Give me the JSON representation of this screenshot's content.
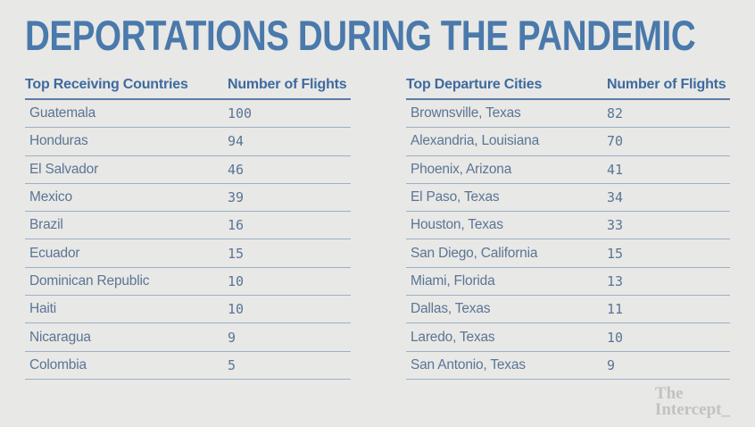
{
  "title": "DEPORTATIONS DURING THE PANDEMIC",
  "colors": {
    "background": "#e8e8e6",
    "title": "#4a79ab",
    "header_text": "#3e6a9e",
    "row_text": "#5a7595",
    "header_rule": "#5c7ea4",
    "row_rule": "#9db0c6",
    "logo": "#c2c2c2"
  },
  "tables": [
    {
      "name_header": "Top Receiving Countries",
      "value_header": "Number of Flights",
      "rows": [
        {
          "label": "Guatemala",
          "value": "100"
        },
        {
          "label": "Honduras",
          "value": "94"
        },
        {
          "label": "El Salvador",
          "value": "46"
        },
        {
          "label": "Mexico",
          "value": "39"
        },
        {
          "label": "Brazil",
          "value": "16"
        },
        {
          "label": "Ecuador",
          "value": "15"
        },
        {
          "label": "Dominican Republic",
          "value": "10"
        },
        {
          "label": "Haiti",
          "value": "10"
        },
        {
          "label": "Nicaragua",
          "value": "9"
        },
        {
          "label": "Colombia",
          "value": "5"
        }
      ]
    },
    {
      "name_header": "Top Departure Cities",
      "value_header": "Number of Flights",
      "rows": [
        {
          "label": "Brownsville, Texas",
          "value": "82"
        },
        {
          "label": "Alexandria, Louisiana",
          "value": "70"
        },
        {
          "label": "Phoenix, Arizona",
          "value": "41"
        },
        {
          "label": "El Paso, Texas",
          "value": "34"
        },
        {
          "label": "Houston, Texas",
          "value": "33"
        },
        {
          "label": "San Diego, California",
          "value": "15"
        },
        {
          "label": "Miami, Florida",
          "value": "13"
        },
        {
          "label": "Dallas, Texas",
          "value": "11"
        },
        {
          "label": "Laredo, Texas",
          "value": "10"
        },
        {
          "label": "San Antonio, Texas",
          "value": "9"
        }
      ]
    }
  ],
  "logo": {
    "line1": "The",
    "line2": "Intercept_"
  },
  "chart_data": [
    {
      "type": "table",
      "title": "Top Receiving Countries",
      "columns": [
        "Top Receiving Countries",
        "Number of Flights"
      ],
      "categories": [
        "Guatemala",
        "Honduras",
        "El Salvador",
        "Mexico",
        "Brazil",
        "Ecuador",
        "Dominican Republic",
        "Haiti",
        "Nicaragua",
        "Colombia"
      ],
      "values": [
        100,
        94,
        46,
        39,
        16,
        15,
        10,
        10,
        9,
        5
      ]
    },
    {
      "type": "table",
      "title": "Top Departure Cities",
      "columns": [
        "Top Departure Cities",
        "Number of Flights"
      ],
      "categories": [
        "Brownsville, Texas",
        "Alexandria, Louisiana",
        "Phoenix, Arizona",
        "El Paso, Texas",
        "Houston, Texas",
        "San Diego, California",
        "Miami, Florida",
        "Dallas, Texas",
        "Laredo, Texas",
        "San Antonio, Texas"
      ],
      "values": [
        82,
        70,
        41,
        34,
        33,
        15,
        13,
        11,
        10,
        9
      ]
    }
  ]
}
